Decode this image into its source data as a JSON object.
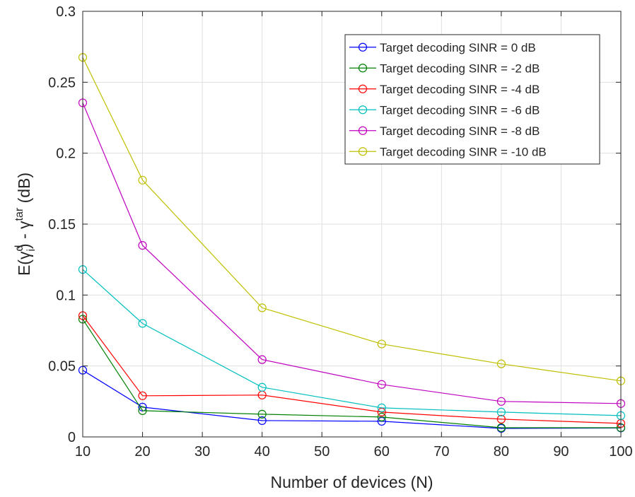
{
  "chart_data": {
    "type": "line",
    "title": "",
    "xlabel": "Number of devices (N)",
    "ylabel": {
      "prefix": "E(γ",
      "sup1": "d",
      "sub1": "i",
      "middle": ") - γ",
      "sup2": "tar",
      "suffix": " (dB)"
    },
    "xlim": [
      10,
      100
    ],
    "ylim": [
      0,
      0.3
    ],
    "xticks": [
      10,
      20,
      30,
      40,
      50,
      60,
      70,
      80,
      90,
      100
    ],
    "xtick_labels": [
      "10",
      "20",
      "30",
      "40",
      "50",
      "60",
      "70",
      "80",
      "90",
      "100"
    ],
    "yticks": [
      0,
      0.05,
      0.1,
      0.15,
      0.2,
      0.25,
      0.3
    ],
    "ytick_labels": [
      "0",
      "0.05",
      "0.1",
      "0.15",
      "0.2",
      "0.25",
      "0.3"
    ],
    "grid": true,
    "legend_position": "top-right",
    "marker": "circle",
    "x": [
      10,
      20,
      40,
      60,
      80,
      100
    ],
    "series": [
      {
        "name": "Target decoding SINR = 0 dB",
        "color": "#0000ff",
        "values": [
          0.047,
          0.021,
          0.0115,
          0.011,
          0.006,
          0.0063
        ]
      },
      {
        "name": "Target decoding SINR = -2 dB",
        "color": "#008000",
        "values": [
          0.083,
          0.0185,
          0.016,
          0.014,
          0.0065,
          0.0065
        ]
      },
      {
        "name": "Target decoding SINR = -4 dB",
        "color": "#ff0000",
        "values": [
          0.0855,
          0.029,
          0.0295,
          0.0175,
          0.0125,
          0.0095
        ]
      },
      {
        "name": "Target decoding SINR = -6 dB",
        "color": "#00bfbf",
        "values": [
          0.118,
          0.08,
          0.035,
          0.0205,
          0.0175,
          0.015
        ]
      },
      {
        "name": "Target decoding SINR = -8 dB",
        "color": "#bf00bf",
        "values": [
          0.2355,
          0.135,
          0.0545,
          0.037,
          0.025,
          0.0235
        ]
      },
      {
        "name": "Target decoding SINR = -10 dB",
        "color": "#bfbf00",
        "values": [
          0.2675,
          0.181,
          0.091,
          0.0655,
          0.0515,
          0.0395
        ]
      }
    ]
  }
}
